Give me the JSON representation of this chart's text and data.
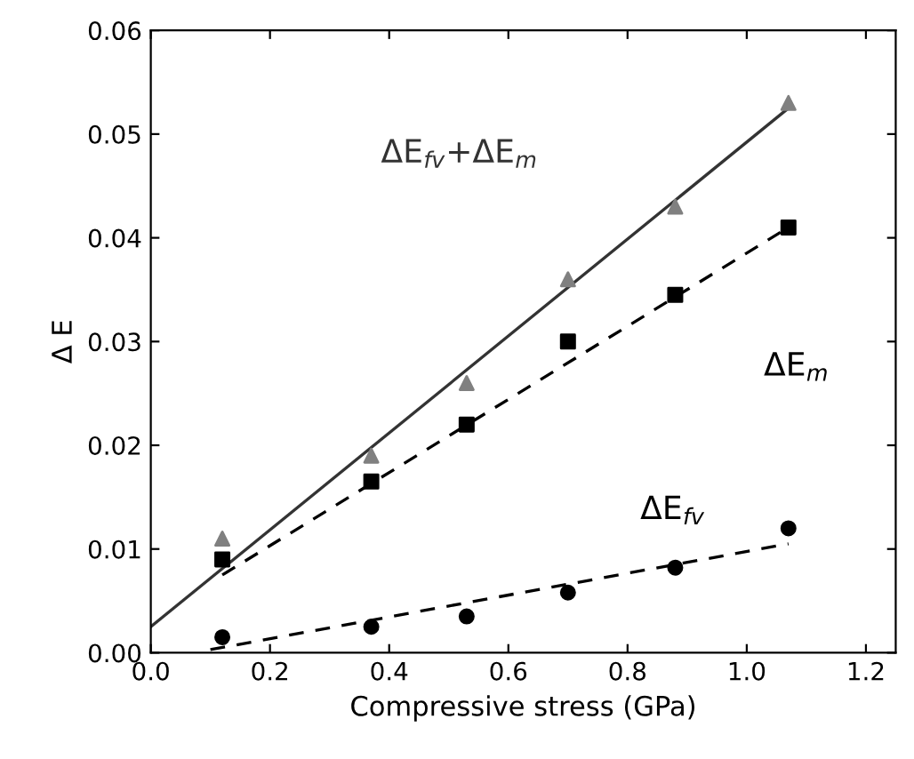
{
  "chart_data": {
    "type": "scatter",
    "xlabel": "Compressive stress (GPa)",
    "ylabel": "Δ E",
    "xlim": [
      0,
      1.25
    ],
    "ylim": [
      0,
      0.06
    ],
    "xticks": [
      {
        "value": 0,
        "label": "0.0"
      },
      {
        "value": 0.2,
        "label": "0.2"
      },
      {
        "value": 0.4,
        "label": "0.4"
      },
      {
        "value": 0.6,
        "label": "0.6"
      },
      {
        "value": 0.8,
        "label": "0.8"
      },
      {
        "value": 1.0,
        "label": "1.0"
      },
      {
        "value": 1.2,
        "label": "1.2"
      }
    ],
    "yticks": [
      {
        "value": 0,
        "label": "0.00"
      },
      {
        "value": 0.01,
        "label": "0.01"
      },
      {
        "value": 0.02,
        "label": "0.02"
      },
      {
        "value": 0.03,
        "label": "0.03"
      },
      {
        "value": 0.04,
        "label": "0.04"
      },
      {
        "value": 0.05,
        "label": "0.05"
      },
      {
        "value": 0.06,
        "label": "0.06"
      }
    ],
    "grid": false,
    "legend": false,
    "series": [
      {
        "marker": "triangle",
        "color": "#808080",
        "x": [
          0.12,
          0.37,
          0.53,
          0.7,
          0.88,
          1.07
        ],
        "values": [
          0.011,
          0.019,
          0.026,
          0.036,
          0.043,
          0.053
        ]
      },
      {
        "marker": "square",
        "color": "#000000",
        "x": [
          0.12,
          0.37,
          0.53,
          0.7,
          0.88,
          1.07
        ],
        "values": [
          0.009,
          0.0165,
          0.022,
          0.03,
          0.0345,
          0.041
        ]
      },
      {
        "marker": "circle",
        "color": "#000000",
        "x": [
          0.12,
          0.37,
          0.53,
          0.7,
          0.88,
          1.07
        ],
        "values": [
          0.0015,
          0.0025,
          0.0035,
          0.0058,
          0.0082,
          0.012
        ]
      },
      {
        "type": "line",
        "name": "ΔE$_{fv}$+ΔE$_{m}$",
        "line_style": "solid",
        "marker": "none",
        "color": "#333333",
        "x": [
          0,
          1.07
        ],
        "values": [
          0.0025,
          0.0525
        ]
      },
      {
        "type": "line",
        "line_style": "dashed",
        "marker": "none",
        "name": "ΔE$_{m}$",
        "color": "#000000",
        "x": [
          0.12,
          1.07
        ],
        "values": [
          0.0075,
          0.041
        ]
      },
      {
        "type": "line",
        "line_style": "dashed",
        "marker": "none",
        "name": "ΔE$_{fv}$",
        "color": "#000000",
        "x": [
          0.1,
          1.07
        ],
        "values": [
          0.0003,
          0.0105
        ]
      }
    ]
  }
}
